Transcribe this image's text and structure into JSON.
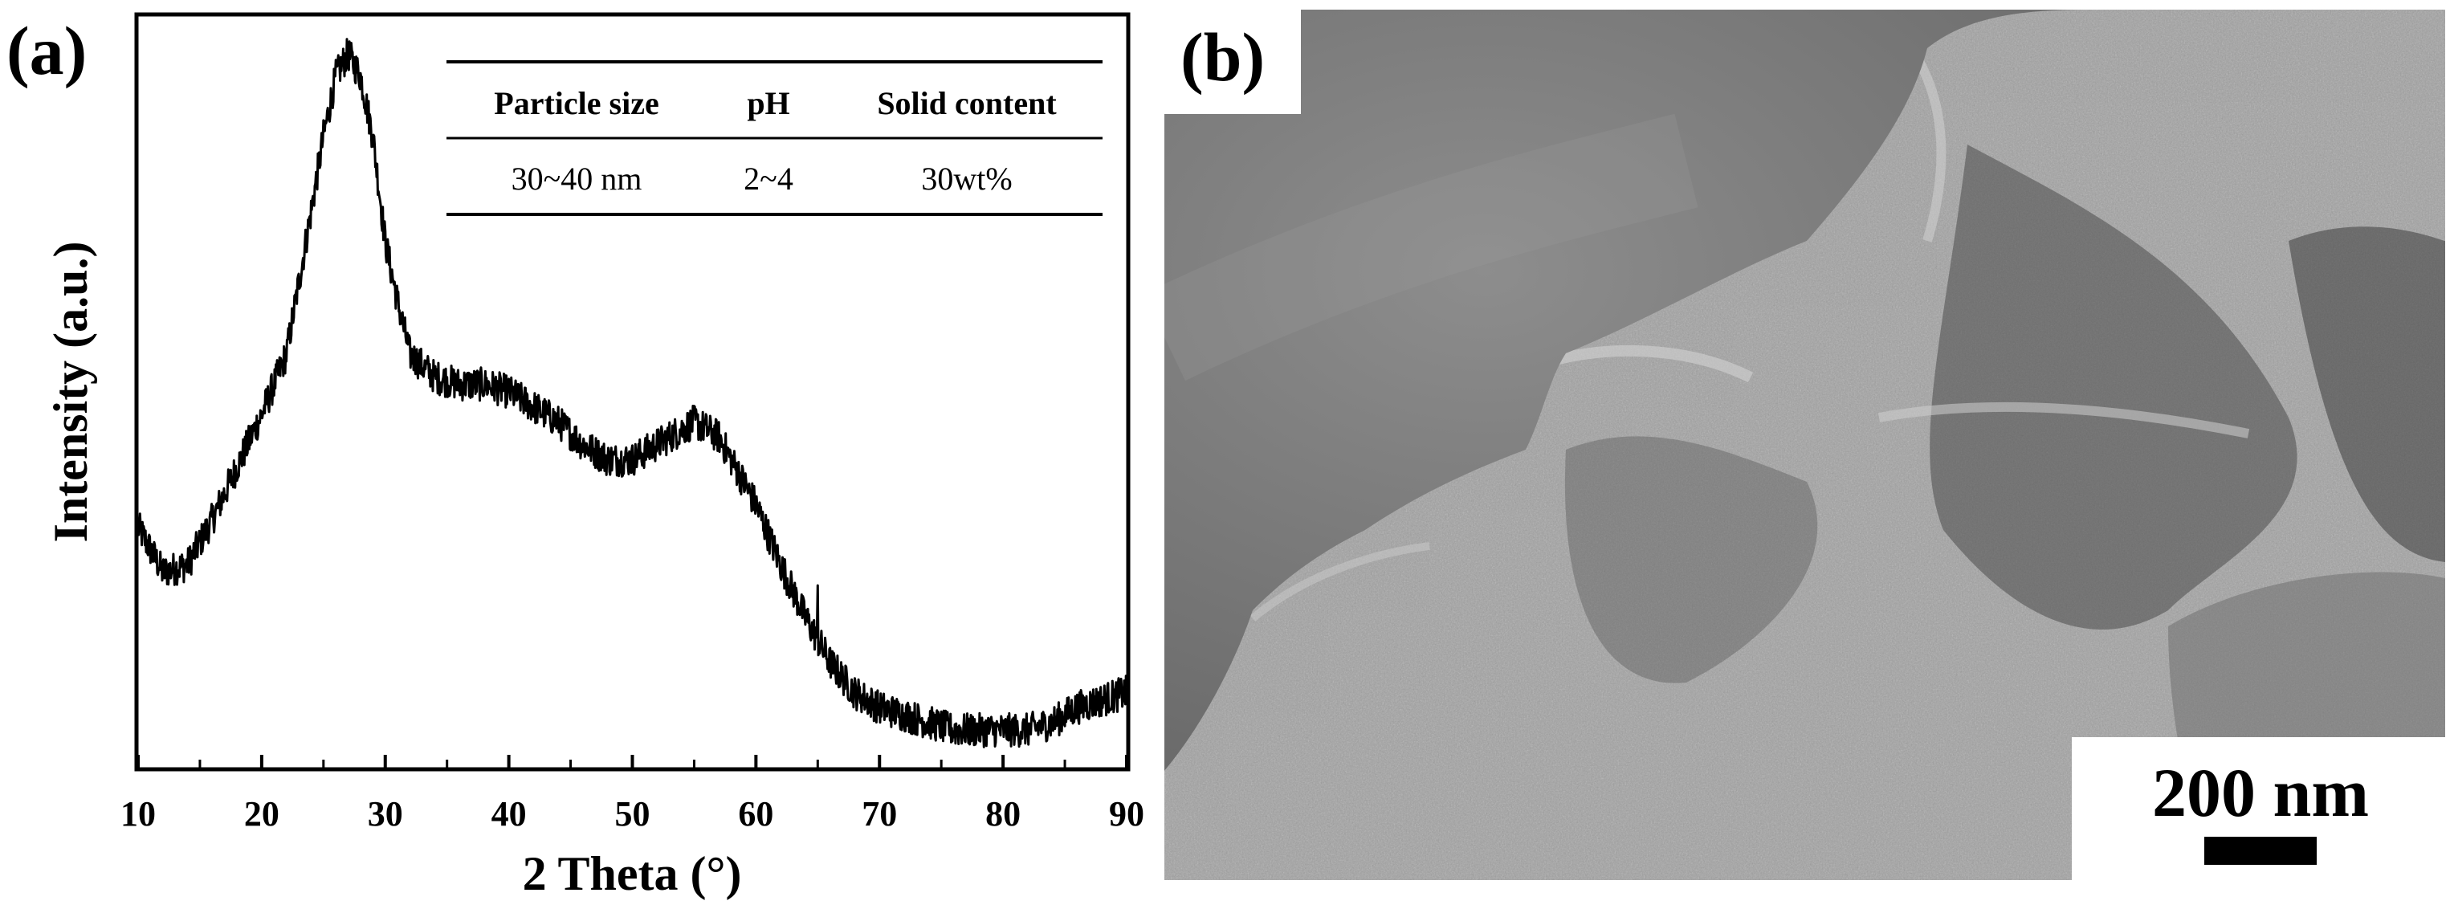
{
  "panel_a": {
    "label": "(a)",
    "table": {
      "headers": [
        "Particle size",
        "pH",
        "Solid content"
      ],
      "row": [
        "30~40 nm",
        "2~4",
        "30wt%"
      ]
    }
  },
  "panel_b": {
    "label": "(b)",
    "scale_bar_label": "200 nm"
  },
  "chart_data": {
    "type": "line",
    "title": "",
    "xlabel": "2 Theta (°)",
    "ylabel": "Intensity (a.u.)",
    "xlim": [
      10,
      90
    ],
    "ylim": [
      0,
      1
    ],
    "xticks": [
      10,
      20,
      30,
      40,
      50,
      60,
      70,
      80,
      90
    ],
    "grid": false,
    "legend": "none",
    "series": [
      {
        "x": [
          10,
          12,
          14,
          16,
          18,
          20,
          22,
          24,
          25,
          26,
          27,
          28,
          29,
          30,
          31,
          32,
          34,
          36,
          38,
          40,
          42,
          44,
          46,
          48,
          50,
          52,
          54,
          55,
          56,
          57,
          58,
          60,
          62,
          64,
          66,
          68,
          70,
          72,
          74,
          76,
          78,
          80,
          82,
          84,
          86,
          88,
          90
        ],
        "y": [
          0.32,
          0.26,
          0.27,
          0.33,
          0.4,
          0.47,
          0.55,
          0.74,
          0.84,
          0.92,
          0.95,
          0.92,
          0.84,
          0.7,
          0.62,
          0.55,
          0.52,
          0.51,
          0.51,
          0.5,
          0.48,
          0.46,
          0.43,
          0.41,
          0.41,
          0.43,
          0.45,
          0.46,
          0.45,
          0.44,
          0.41,
          0.35,
          0.27,
          0.2,
          0.14,
          0.1,
          0.08,
          0.07,
          0.06,
          0.05,
          0.05,
          0.05,
          0.05,
          0.06,
          0.08,
          0.09,
          0.1
        ]
      }
    ]
  }
}
